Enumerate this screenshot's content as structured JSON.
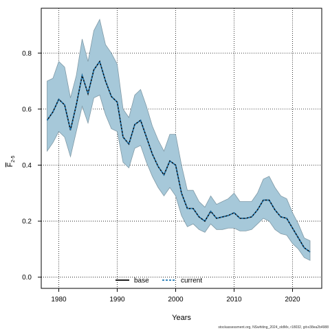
{
  "chart_data": {
    "type": "area",
    "title": "",
    "xlabel": "Years",
    "ylabel_main": "F",
    "ylabel_sub": "2-5",
    "xlim": [
      1977,
      2025
    ],
    "ylim": [
      -0.04,
      0.96
    ],
    "x_ticks": [
      1980,
      1990,
      2000,
      2010,
      2020
    ],
    "y_ticks": [
      0.0,
      0.2,
      0.4,
      0.6,
      0.8
    ],
    "y_tick_labels": [
      "0.0",
      "0.2",
      "0.4",
      "0.6",
      "0.8"
    ],
    "grid": true,
    "legend_position": "bottom-center",
    "x": [
      1978,
      1979,
      1980,
      1981,
      1982,
      1983,
      1984,
      1985,
      1986,
      1987,
      1988,
      1989,
      1990,
      1991,
      1992,
      1993,
      1994,
      1995,
      1996,
      1997,
      1998,
      1999,
      2000,
      2001,
      2002,
      2003,
      2004,
      2005,
      2006,
      2007,
      2008,
      2009,
      2010,
      2011,
      2012,
      2013,
      2014,
      2015,
      2016,
      2017,
      2018,
      2019,
      2020,
      2021,
      2022,
      2023
    ],
    "band": {
      "name": "confidence interval",
      "color": "#a6c8d9",
      "edge_color": "#7f99a6",
      "lower": [
        0.45,
        0.48,
        0.52,
        0.5,
        0.43,
        0.52,
        0.61,
        0.55,
        0.64,
        0.65,
        0.58,
        0.53,
        0.52,
        0.41,
        0.39,
        0.46,
        0.47,
        0.41,
        0.36,
        0.32,
        0.29,
        0.32,
        0.29,
        0.22,
        0.18,
        0.19,
        0.17,
        0.16,
        0.19,
        0.17,
        0.17,
        0.175,
        0.175,
        0.165,
        0.165,
        0.17,
        0.19,
        0.21,
        0.2,
        0.17,
        0.155,
        0.15,
        0.12,
        0.1,
        0.07,
        0.06
      ],
      "upper": [
        0.7,
        0.71,
        0.77,
        0.75,
        0.64,
        0.72,
        0.85,
        0.77,
        0.88,
        0.92,
        0.83,
        0.8,
        0.76,
        0.6,
        0.57,
        0.65,
        0.67,
        0.61,
        0.54,
        0.49,
        0.45,
        0.51,
        0.51,
        0.4,
        0.31,
        0.31,
        0.27,
        0.25,
        0.29,
        0.26,
        0.27,
        0.28,
        0.3,
        0.27,
        0.27,
        0.27,
        0.3,
        0.35,
        0.36,
        0.32,
        0.29,
        0.28,
        0.23,
        0.19,
        0.14,
        0.13
      ]
    },
    "series": [
      {
        "name": "base",
        "color": "#000000",
        "style": "solid",
        "values": [
          0.56,
          0.59,
          0.635,
          0.615,
          0.525,
          0.615,
          0.72,
          0.655,
          0.74,
          0.77,
          0.7,
          0.645,
          0.625,
          0.5,
          0.475,
          0.545,
          0.56,
          0.5,
          0.44,
          0.395,
          0.365,
          0.415,
          0.4,
          0.3,
          0.245,
          0.245,
          0.215,
          0.2,
          0.235,
          0.21,
          0.215,
          0.22,
          0.23,
          0.21,
          0.21,
          0.215,
          0.24,
          0.275,
          0.275,
          0.24,
          0.215,
          0.21,
          0.175,
          0.14,
          0.105,
          0.09
        ]
      },
      {
        "name": "current",
        "color": "#1f78b4",
        "style": "dashed",
        "values": [
          0.56,
          0.59,
          0.635,
          0.615,
          0.525,
          0.615,
          0.72,
          0.655,
          0.74,
          0.77,
          0.7,
          0.645,
          0.625,
          0.5,
          0.475,
          0.545,
          0.56,
          0.5,
          0.44,
          0.395,
          0.365,
          0.415,
          0.4,
          0.3,
          0.245,
          0.245,
          0.215,
          0.2,
          0.235,
          0.21,
          0.215,
          0.22,
          0.23,
          0.21,
          0.21,
          0.215,
          0.24,
          0.275,
          0.275,
          0.24,
          0.215,
          0.21,
          0.175,
          0.14,
          0.105,
          0.09
        ]
      }
    ],
    "source_note": "stockassessment.org, NSwhiting_2024_oldMx, r18032, git:e38ea2b4988"
  }
}
